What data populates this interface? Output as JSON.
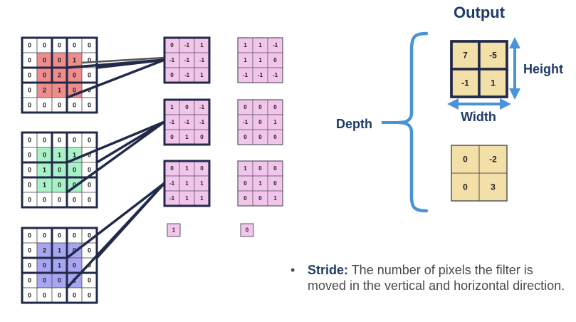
{
  "colors": {
    "border": "#222a4a",
    "pink": "#f1c6ea",
    "red": "#ef8c8c",
    "green": "#a9f2c8",
    "blue": "#a8a6f2",
    "tan": "#f3dfa8",
    "bracket": "#4a93d9",
    "title": "#1f3a68"
  },
  "input_grids": [
    {
      "values": [
        [
          "0",
          "0",
          "0",
          "0",
          "0"
        ],
        [
          "0",
          "0",
          "0",
          "1",
          "0"
        ],
        [
          "0",
          "0",
          "2",
          "0",
          "0"
        ],
        [
          "0",
          "2",
          "1",
          "0",
          "0"
        ],
        [
          "0",
          "0",
          "0",
          "0",
          "0"
        ]
      ],
      "highlight": [
        [
          1,
          1
        ],
        [
          1,
          2
        ],
        [
          1,
          3
        ],
        [
          2,
          1
        ],
        [
          2,
          2
        ],
        [
          2,
          3
        ],
        [
          3,
          1
        ],
        [
          3,
          2
        ],
        [
          3,
          3
        ]
      ],
      "color": "red"
    },
    {
      "values": [
        [
          "0",
          "0",
          "0",
          "0",
          "0"
        ],
        [
          "0",
          "0",
          "1",
          "1",
          "0"
        ],
        [
          "0",
          "1",
          "0",
          "0",
          "0"
        ],
        [
          "0",
          "1",
          "0",
          "0",
          "0"
        ],
        [
          "0",
          "0",
          "0",
          "0",
          "0"
        ]
      ],
      "highlight": [
        [
          1,
          1
        ],
        [
          1,
          2
        ],
        [
          1,
          3
        ],
        [
          2,
          1
        ],
        [
          2,
          2
        ],
        [
          2,
          3
        ],
        [
          3,
          1
        ],
        [
          3,
          2
        ],
        [
          3,
          3
        ]
      ],
      "color": "green"
    },
    {
      "values": [
        [
          "0",
          "0",
          "0",
          "0",
          "0"
        ],
        [
          "0",
          "2",
          "1",
          "0",
          "0"
        ],
        [
          "0",
          "0",
          "1",
          "0",
          "0"
        ],
        [
          "0",
          "0",
          "0",
          "1",
          "0"
        ],
        [
          "0",
          "0",
          "0",
          "0",
          "0"
        ]
      ],
      "highlight": [
        [
          1,
          1
        ],
        [
          1,
          2
        ],
        [
          1,
          3
        ],
        [
          2,
          1
        ],
        [
          2,
          2
        ],
        [
          2,
          3
        ],
        [
          3,
          1
        ],
        [
          3,
          2
        ],
        [
          3,
          3
        ]
      ],
      "color": "blue"
    }
  ],
  "filters_a": [
    [
      [
        "0",
        "-1",
        "1"
      ],
      [
        "-1",
        "-1",
        "-1"
      ],
      [
        "0",
        "-1",
        "1"
      ]
    ],
    [
      [
        "1",
        "0",
        "-1"
      ],
      [
        "-1",
        "-1",
        "-1"
      ],
      [
        "0",
        "1",
        "0"
      ]
    ],
    [
      [
        "0",
        "1",
        "0"
      ],
      [
        "-1",
        "1",
        "1"
      ],
      [
        "-1",
        "1",
        "1"
      ]
    ]
  ],
  "filters_b": [
    [
      [
        "1",
        "1",
        "-1"
      ],
      [
        "1",
        "1",
        "0"
      ],
      [
        "-1",
        "-1",
        "-1"
      ]
    ],
    [
      [
        "0",
        "0",
        "0"
      ],
      [
        "-1",
        "0",
        "1"
      ],
      [
        "0",
        "0",
        "0"
      ]
    ],
    [
      [
        "1",
        "0",
        "0"
      ],
      [
        "0",
        "1",
        "0"
      ],
      [
        "0",
        "0",
        "1"
      ]
    ]
  ],
  "bias_a": "1",
  "bias_b": "0",
  "output": {
    "title": "Output",
    "map1": [
      [
        "7",
        "-5"
      ],
      [
        "-1",
        "1"
      ]
    ],
    "map2": [
      [
        "0",
        "-2"
      ],
      [
        "0",
        "3"
      ]
    ],
    "height_label": "Height",
    "width_label": "Width",
    "depth_label": "Depth"
  },
  "stride": {
    "bullet": "•",
    "term": "Stride:",
    "text": " The number of pixels the filter is moved in the vertical and horizontal direction."
  }
}
